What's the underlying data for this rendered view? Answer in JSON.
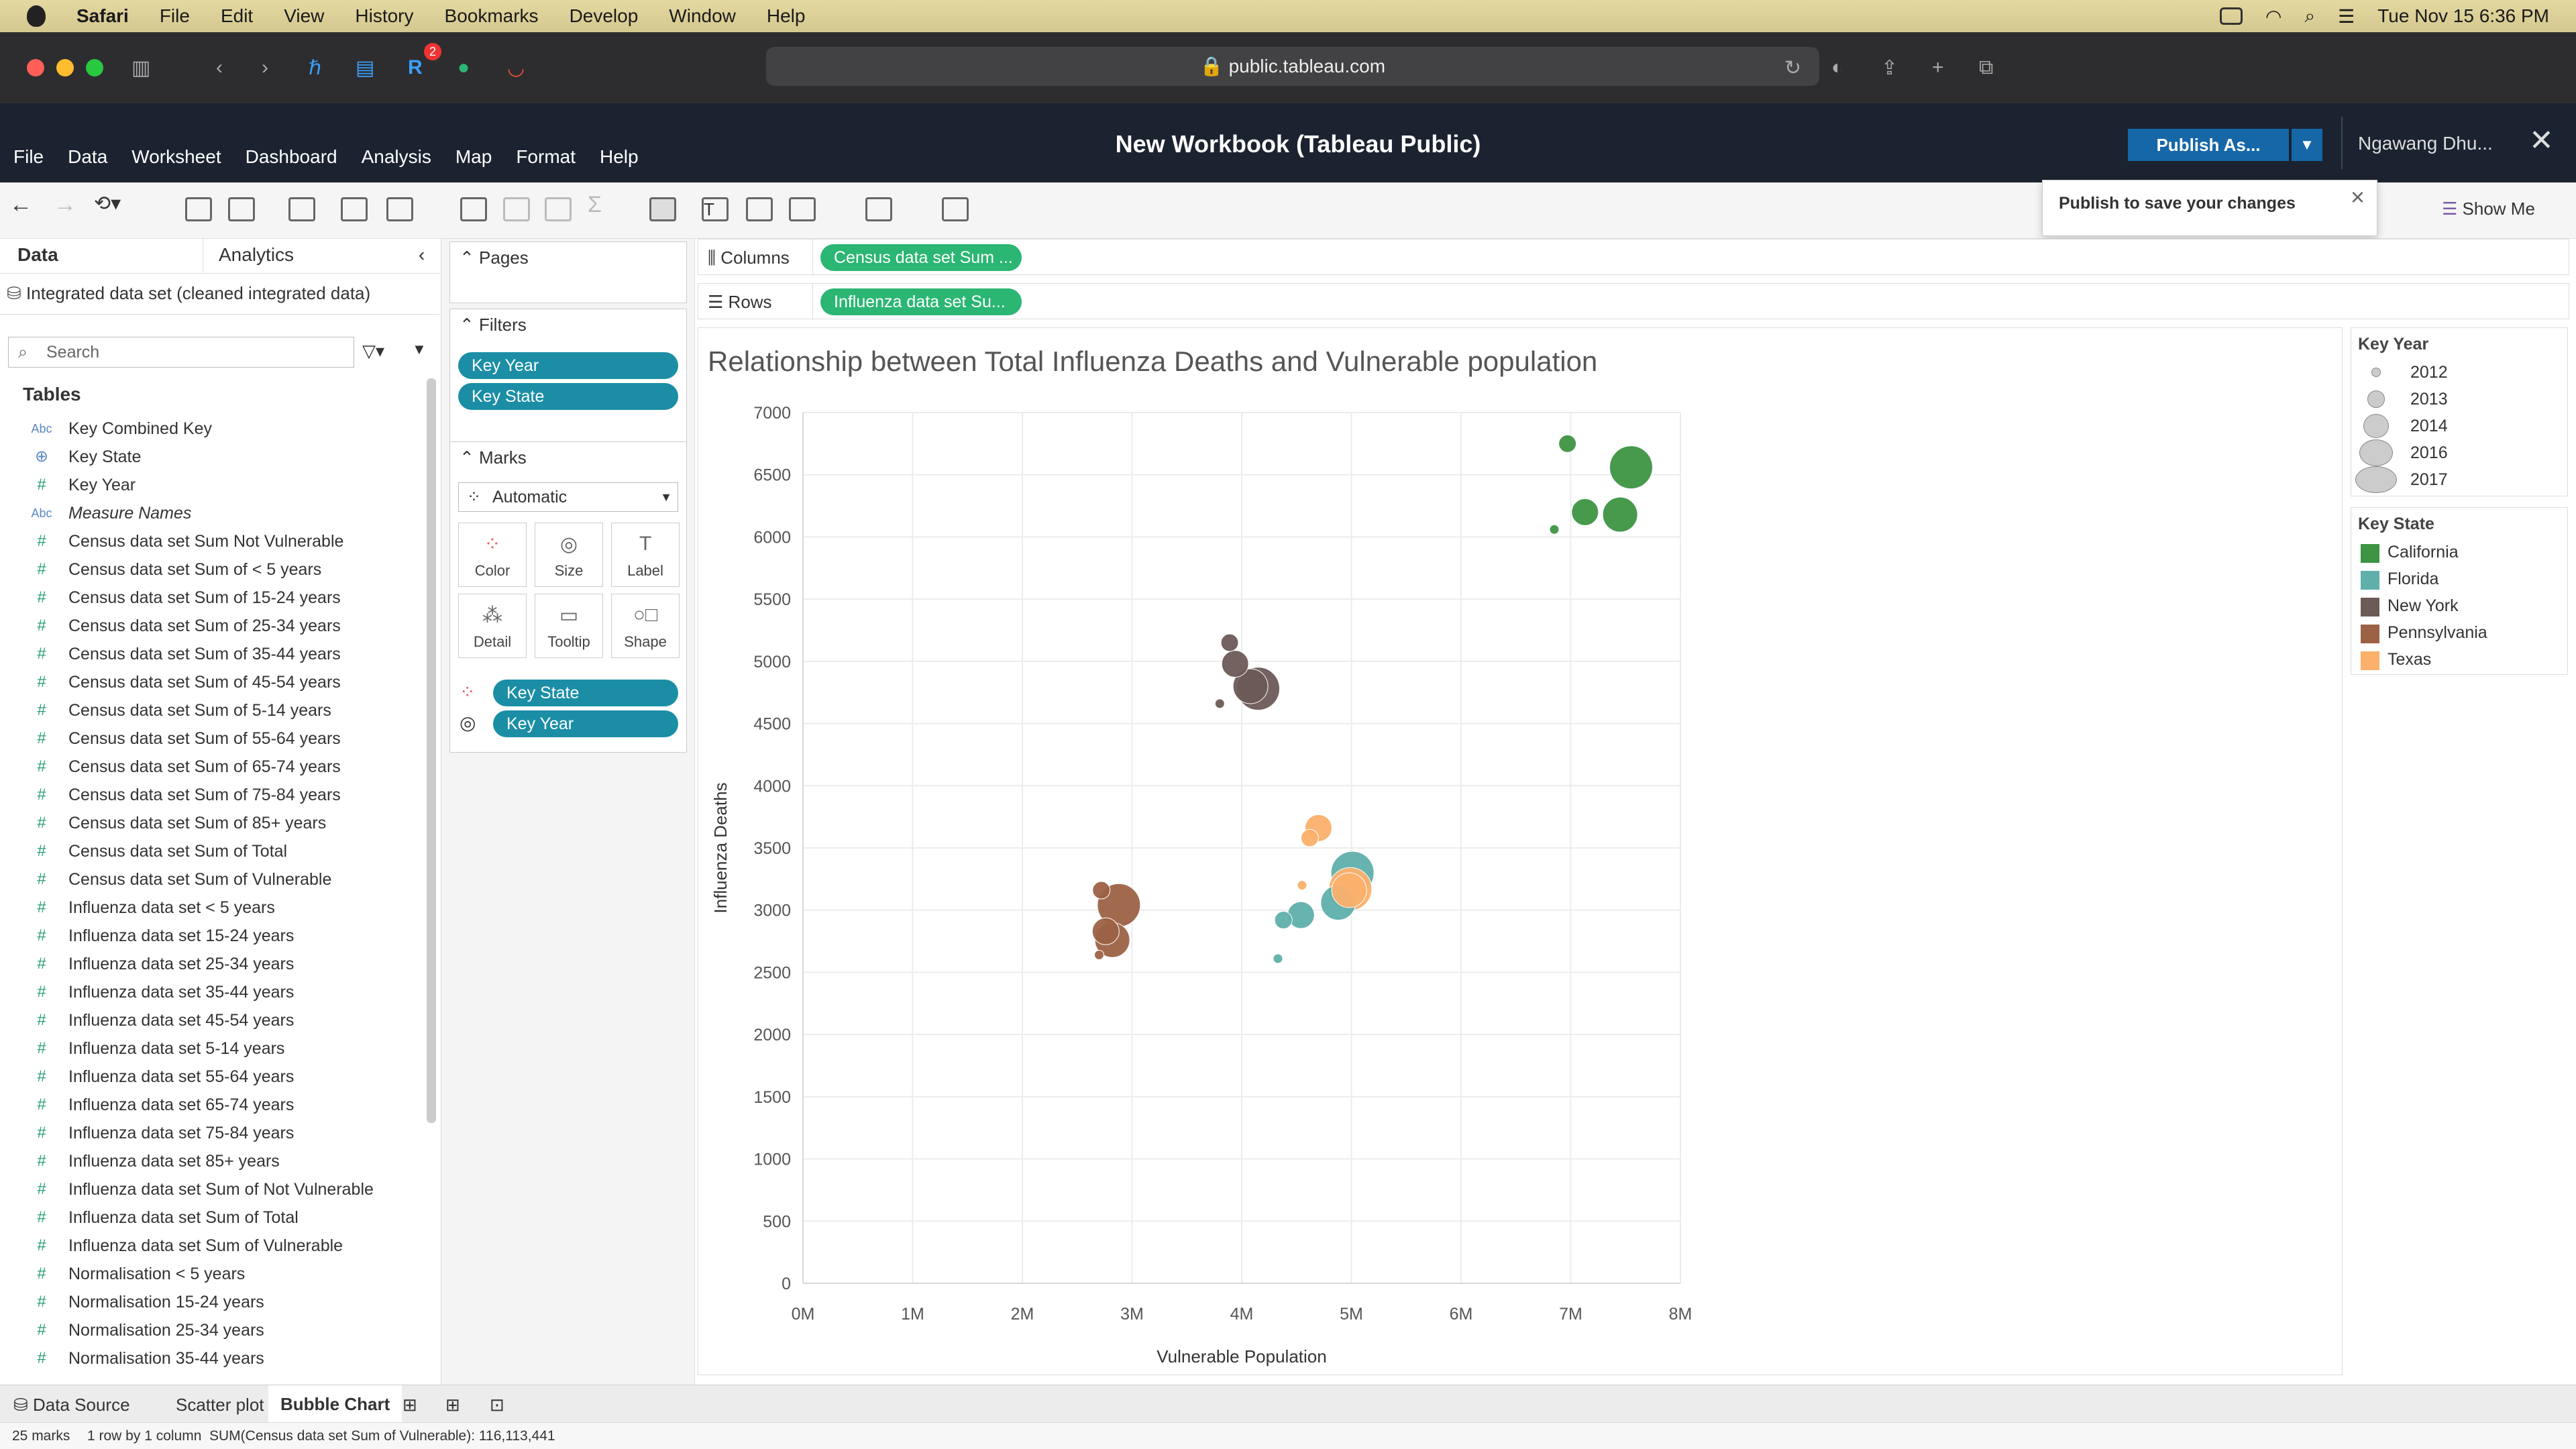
{
  "macos": {
    "app": "Safari",
    "menus": [
      "File",
      "Edit",
      "View",
      "History",
      "Bookmarks",
      "Develop",
      "Window",
      "Help"
    ],
    "clock": "Tue Nov 15  6:36 PM"
  },
  "browser": {
    "url": "public.tableau.com",
    "badge": "2"
  },
  "tableau": {
    "menus": [
      "File",
      "Data",
      "Worksheet",
      "Dashboard",
      "Analysis",
      "Map",
      "Format",
      "Help"
    ],
    "title": "New Workbook (Tableau Public)",
    "publish": "Publish As...",
    "user": "Ngawang Dhu...",
    "popup": "Publish to save your changes",
    "show_me": "Show Me"
  },
  "data_pane": {
    "tabs": [
      "Data",
      "Analytics"
    ],
    "source": "Integrated data set (cleaned integrated data)",
    "search_placeholder": "Search",
    "tables_label": "Tables",
    "fields": [
      {
        "type": "Abc",
        "name": "Key Combined Key"
      },
      {
        "type": "geo",
        "name": "Key State"
      },
      {
        "type": "#",
        "name": "Key Year"
      },
      {
        "type": "Abc",
        "name": "Measure Names"
      },
      {
        "type": "#",
        "name": "Census data set Sum Not Vulnerable"
      },
      {
        "type": "#",
        "name": "Census data set Sum of < 5 years"
      },
      {
        "type": "#",
        "name": "Census data set Sum of 15-24 years"
      },
      {
        "type": "#",
        "name": "Census data set Sum of 25-34 years"
      },
      {
        "type": "#",
        "name": "Census data set Sum of 35-44 years"
      },
      {
        "type": "#",
        "name": "Census data set Sum of 45-54 years"
      },
      {
        "type": "#",
        "name": "Census data set Sum of 5-14 years"
      },
      {
        "type": "#",
        "name": "Census data set Sum of 55-64 years"
      },
      {
        "type": "#",
        "name": "Census data set Sum of 65-74 years"
      },
      {
        "type": "#",
        "name": "Census data set Sum of 75-84 years"
      },
      {
        "type": "#",
        "name": "Census data set Sum of 85+ years"
      },
      {
        "type": "#",
        "name": "Census data set Sum of Total"
      },
      {
        "type": "#",
        "name": "Census data set Sum of Vulnerable"
      },
      {
        "type": "#",
        "name": "Influenza data set < 5 years"
      },
      {
        "type": "#",
        "name": "Influenza data set 15-24 years"
      },
      {
        "type": "#",
        "name": "Influenza data set 25-34 years"
      },
      {
        "type": "#",
        "name": "Influenza data set 35-44 years"
      },
      {
        "type": "#",
        "name": "Influenza data set 45-54 years"
      },
      {
        "type": "#",
        "name": "Influenza data set 5-14 years"
      },
      {
        "type": "#",
        "name": "Influenza data set 55-64 years"
      },
      {
        "type": "#",
        "name": "Influenza data set 65-74 years"
      },
      {
        "type": "#",
        "name": "Influenza data set 75-84 years"
      },
      {
        "type": "#",
        "name": "Influenza data set 85+ years"
      },
      {
        "type": "#",
        "name": "Influenza data set Sum of Not Vulnerable"
      },
      {
        "type": "#",
        "name": "Influenza data set Sum of Total"
      },
      {
        "type": "#",
        "name": "Influenza data set Sum of Vulnerable"
      },
      {
        "type": "#",
        "name": "Normalisation < 5 years"
      },
      {
        "type": "#",
        "name": "Normalisation 15-24 years"
      },
      {
        "type": "#",
        "name": "Normalisation 25-34 years"
      },
      {
        "type": "#",
        "name": "Normalisation 35-44 years"
      }
    ]
  },
  "cards": {
    "pages": "Pages",
    "filters": "Filters",
    "filter_pills": [
      "Key Year",
      "Key State"
    ],
    "marks": "Marks",
    "mark_type": "Automatic",
    "mark_buttons": [
      "Color",
      "Size",
      "Label",
      "Detail",
      "Tooltip",
      "Shape"
    ],
    "mark_pills": [
      "Key State",
      "Key Year"
    ]
  },
  "shelves": {
    "columns_label": "Columns",
    "columns_pill": "Census data set Sum ...",
    "rows_label": "Rows",
    "rows_pill": "Influenza data set Su..."
  },
  "legends": {
    "year_title": "Key Year",
    "years": [
      "2012",
      "2013",
      "2014",
      "2016",
      "2017"
    ],
    "state_title": "Key State",
    "states": [
      {
        "name": "California",
        "color": "#3d9442"
      },
      {
        "name": "Florida",
        "color": "#5fafab"
      },
      {
        "name": "New York",
        "color": "#6b5a56"
      },
      {
        "name": "Pennsylvania",
        "color": "#9c6245"
      },
      {
        "name": "Texas",
        "color": "#fbb06c"
      }
    ]
  },
  "sheet_tabs": [
    "Data Source",
    "Scatter plot",
    "Bubble Chart"
  ],
  "status": {
    "marks": "25 marks",
    "grid": "1 row by 1 column",
    "sum": "SUM(Census data set Sum of Vulnerable): 116,113,441"
  },
  "chart_data": {
    "type": "scatter",
    "title": "Relationship between Total Influenza Deaths and Vulnerable population",
    "xlabel": "Vulnerable Population",
    "ylabel": "Influenza Deaths",
    "xlim": [
      0,
      8000000
    ],
    "ylim": [
      0,
      7000
    ],
    "x_ticks": [
      "0M",
      "1M",
      "2M",
      "3M",
      "4M",
      "5M",
      "6M",
      "7M",
      "8M"
    ],
    "y_ticks": [
      "0",
      "500",
      "1000",
      "1500",
      "2000",
      "2500",
      "3000",
      "3500",
      "4000",
      "4500",
      "5000",
      "5500",
      "6000",
      "6500",
      "7000"
    ],
    "grid": true,
    "points": [
      {
        "state": "California",
        "year": 2012,
        "x": 6850000,
        "y": 6060
      },
      {
        "state": "California",
        "year": 2013,
        "x": 6970000,
        "y": 6750
      },
      {
        "state": "California",
        "year": 2014,
        "x": 7130000,
        "y": 6200
      },
      {
        "state": "California",
        "year": 2016,
        "x": 7450000,
        "y": 6180
      },
      {
        "state": "California",
        "year": 2017,
        "x": 7550000,
        "y": 6560
      },
      {
        "state": "Florida",
        "year": 2012,
        "x": 4330000,
        "y": 2610
      },
      {
        "state": "Florida",
        "year": 2013,
        "x": 4380000,
        "y": 2920
      },
      {
        "state": "Florida",
        "year": 2014,
        "x": 4540000,
        "y": 2960
      },
      {
        "state": "Florida",
        "year": 2016,
        "x": 4880000,
        "y": 3060
      },
      {
        "state": "Florida",
        "year": 2017,
        "x": 5010000,
        "y": 3300
      },
      {
        "state": "New York",
        "year": 2012,
        "x": 3800000,
        "y": 4660
      },
      {
        "state": "New York",
        "year": 2013,
        "x": 3890000,
        "y": 5150
      },
      {
        "state": "New York",
        "year": 2014,
        "x": 3940000,
        "y": 4980
      },
      {
        "state": "New York",
        "year": 2016,
        "x": 4080000,
        "y": 4800
      },
      {
        "state": "New York",
        "year": 2017,
        "x": 4150000,
        "y": 4780
      },
      {
        "state": "Pennsylvania",
        "year": 2012,
        "x": 2700000,
        "y": 2640
      },
      {
        "state": "Pennsylvania",
        "year": 2013,
        "x": 2720000,
        "y": 3160
      },
      {
        "state": "Pennsylvania",
        "year": 2014,
        "x": 2760000,
        "y": 2830
      },
      {
        "state": "Pennsylvania",
        "year": 2016,
        "x": 2820000,
        "y": 2760
      },
      {
        "state": "Pennsylvania",
        "year": 2017,
        "x": 2880000,
        "y": 3040
      },
      {
        "state": "Texas",
        "year": 2012,
        "x": 4550000,
        "y": 3200
      },
      {
        "state": "Texas",
        "year": 2013,
        "x": 4620000,
        "y": 3580
      },
      {
        "state": "Texas",
        "year": 2014,
        "x": 4700000,
        "y": 3660
      },
      {
        "state": "Texas",
        "year": 2016,
        "x": 4980000,
        "y": 3160
      },
      {
        "state": "Texas",
        "year": 2017,
        "x": 4990000,
        "y": 3170
      }
    ]
  }
}
